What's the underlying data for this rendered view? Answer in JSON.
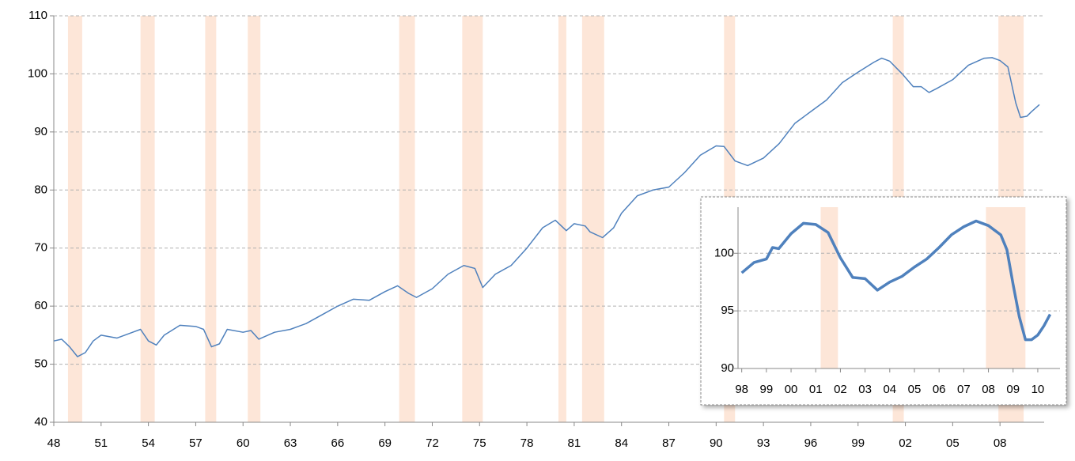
{
  "chart_data": [
    {
      "type": "line",
      "color": "#4f81bd",
      "band_color": "#fde6d8",
      "x": [
        1948,
        1948.5,
        1949,
        1949.5,
        1950,
        1950.5,
        1951,
        1952,
        1953,
        1953.5,
        1954,
        1954.5,
        1955,
        1956,
        1957,
        1957.5,
        1958,
        1958.5,
        1959,
        1960,
        1960.5,
        1961,
        1962,
        1963,
        1964,
        1965,
        1966,
        1967,
        1968,
        1969,
        1969.8,
        1970.5,
        1971,
        1972,
        1973,
        1974,
        1974.7,
        1975.2,
        1976,
        1977,
        1978,
        1979,
        1979.8,
        1980.5,
        1981,
        1981.7,
        1982,
        1982.8,
        1983.5,
        1984,
        1985,
        1986,
        1987,
        1988,
        1989,
        1990,
        1990.5,
        1991.2,
        1992,
        1993,
        1994,
        1995,
        1996,
        1997,
        1998,
        1999,
        2000,
        2000.5,
        2001,
        2001.8,
        2002.5,
        2003,
        2003.5,
        2004,
        2005,
        2006,
        2007,
        2007.5,
        2008,
        2008.5,
        2009,
        2009.3,
        2009.7,
        2010,
        2010.5
      ],
      "values": [
        54,
        54.3,
        53,
        51.3,
        52,
        54,
        55,
        54.5,
        55.5,
        56,
        54,
        53.3,
        55,
        56.7,
        56.5,
        56,
        53,
        53.5,
        56,
        55.5,
        55.8,
        54.3,
        55.5,
        56,
        57,
        58.5,
        60,
        61.2,
        61,
        62.5,
        63.5,
        62.2,
        61.5,
        63,
        65.5,
        67,
        66.5,
        63.2,
        65.5,
        67,
        70,
        73.5,
        74.8,
        73,
        74.2,
        73.8,
        72.8,
        71.8,
        73.5,
        76,
        79,
        80,
        80.5,
        83,
        86,
        87.6,
        87.5,
        85,
        84.2,
        85.5,
        88,
        91.5,
        93.5,
        95.5,
        98.5,
        100.3,
        102,
        102.7,
        102.2,
        100,
        97.8,
        97.8,
        96.8,
        97.5,
        99,
        101.5,
        102.7,
        102.8,
        102.3,
        101.2,
        95,
        92.5,
        92.7,
        93.5,
        94.7
      ],
      "shaded_periods": [
        [
          1948.9,
          1949.8
        ],
        [
          1953.5,
          1954.4
        ],
        [
          1957.6,
          1958.3
        ],
        [
          1960.3,
          1961.1
        ],
        [
          1969.9,
          1970.9
        ],
        [
          1973.9,
          1975.2
        ],
        [
          1980.0,
          1980.5
        ],
        [
          1981.5,
          1982.9
        ],
        [
          1990.5,
          1991.2
        ],
        [
          2001.2,
          2001.9
        ],
        [
          2007.9,
          2009.5
        ]
      ],
      "xlim": [
        1948,
        2010.8
      ],
      "ylim": [
        40,
        110
      ],
      "xticks": [
        {
          "value": 1948,
          "label": "48"
        },
        {
          "value": 1951,
          "label": "51"
        },
        {
          "value": 1954,
          "label": "54"
        },
        {
          "value": 1957,
          "label": "57"
        },
        {
          "value": 1960,
          "label": "60"
        },
        {
          "value": 1963,
          "label": "63"
        },
        {
          "value": 1966,
          "label": "66"
        },
        {
          "value": 1969,
          "label": "69"
        },
        {
          "value": 1972,
          "label": "72"
        },
        {
          "value": 1975,
          "label": "75"
        },
        {
          "value": 1978,
          "label": "78"
        },
        {
          "value": 1981,
          "label": "81"
        },
        {
          "value": 1984,
          "label": "84"
        },
        {
          "value": 1987,
          "label": "87"
        },
        {
          "value": 1990,
          "label": "90"
        },
        {
          "value": 1993,
          "label": "93"
        },
        {
          "value": 1996,
          "label": "96"
        },
        {
          "value": 1999,
          "label": "99"
        },
        {
          "value": 2002,
          "label": "02"
        },
        {
          "value": 2005,
          "label": "05"
        },
        {
          "value": 2008,
          "label": "08"
        }
      ],
      "yticks": [
        40,
        50,
        60,
        70,
        80,
        90,
        100,
        110
      ],
      "grid": true
    },
    {
      "type": "line",
      "color": "#4f81bd",
      "band_color": "#fde6d8",
      "x": [
        1998,
        1998.5,
        1999,
        1999.25,
        1999.5,
        2000,
        2000.5,
        2001,
        2001.5,
        2002,
        2002.5,
        2003,
        2003.5,
        2004,
        2004.5,
        2005,
        2005.5,
        2006,
        2006.5,
        2007,
        2007.5,
        2008,
        2008.5,
        2008.75,
        2009,
        2009.25,
        2009.5,
        2009.75,
        2010,
        2010.25,
        2010.5
      ],
      "values": [
        98.3,
        99.2,
        99.5,
        100.5,
        100.4,
        101.7,
        102.6,
        102.5,
        101.8,
        99.6,
        97.9,
        97.8,
        96.8,
        97.5,
        98,
        98.8,
        99.5,
        100.5,
        101.6,
        102.3,
        102.8,
        102.4,
        101.6,
        100.3,
        97.3,
        94.5,
        92.5,
        92.5,
        92.9,
        93.7,
        94.7
      ],
      "shaded_periods": [
        [
          2001.2,
          2001.9
        ],
        [
          2007.9,
          2009.5
        ]
      ],
      "xlim": [
        1997.85,
        2010.9
      ],
      "ylim": [
        90,
        104
      ],
      "xticks": [
        {
          "value": 1998,
          "label": "98"
        },
        {
          "value": 1999,
          "label": "99"
        },
        {
          "value": 2000,
          "label": "00"
        },
        {
          "value": 2001,
          "label": "01"
        },
        {
          "value": 2002,
          "label": "02"
        },
        {
          "value": 2003,
          "label": "03"
        },
        {
          "value": 2004,
          "label": "04"
        },
        {
          "value": 2005,
          "label": "05"
        },
        {
          "value": 2006,
          "label": "06"
        },
        {
          "value": 2007,
          "label": "07"
        },
        {
          "value": 2008,
          "label": "08"
        },
        {
          "value": 2009,
          "label": "09"
        },
        {
          "value": 2010,
          "label": "10"
        }
      ],
      "yticks": [
        90,
        95,
        100
      ],
      "grid": true
    }
  ]
}
